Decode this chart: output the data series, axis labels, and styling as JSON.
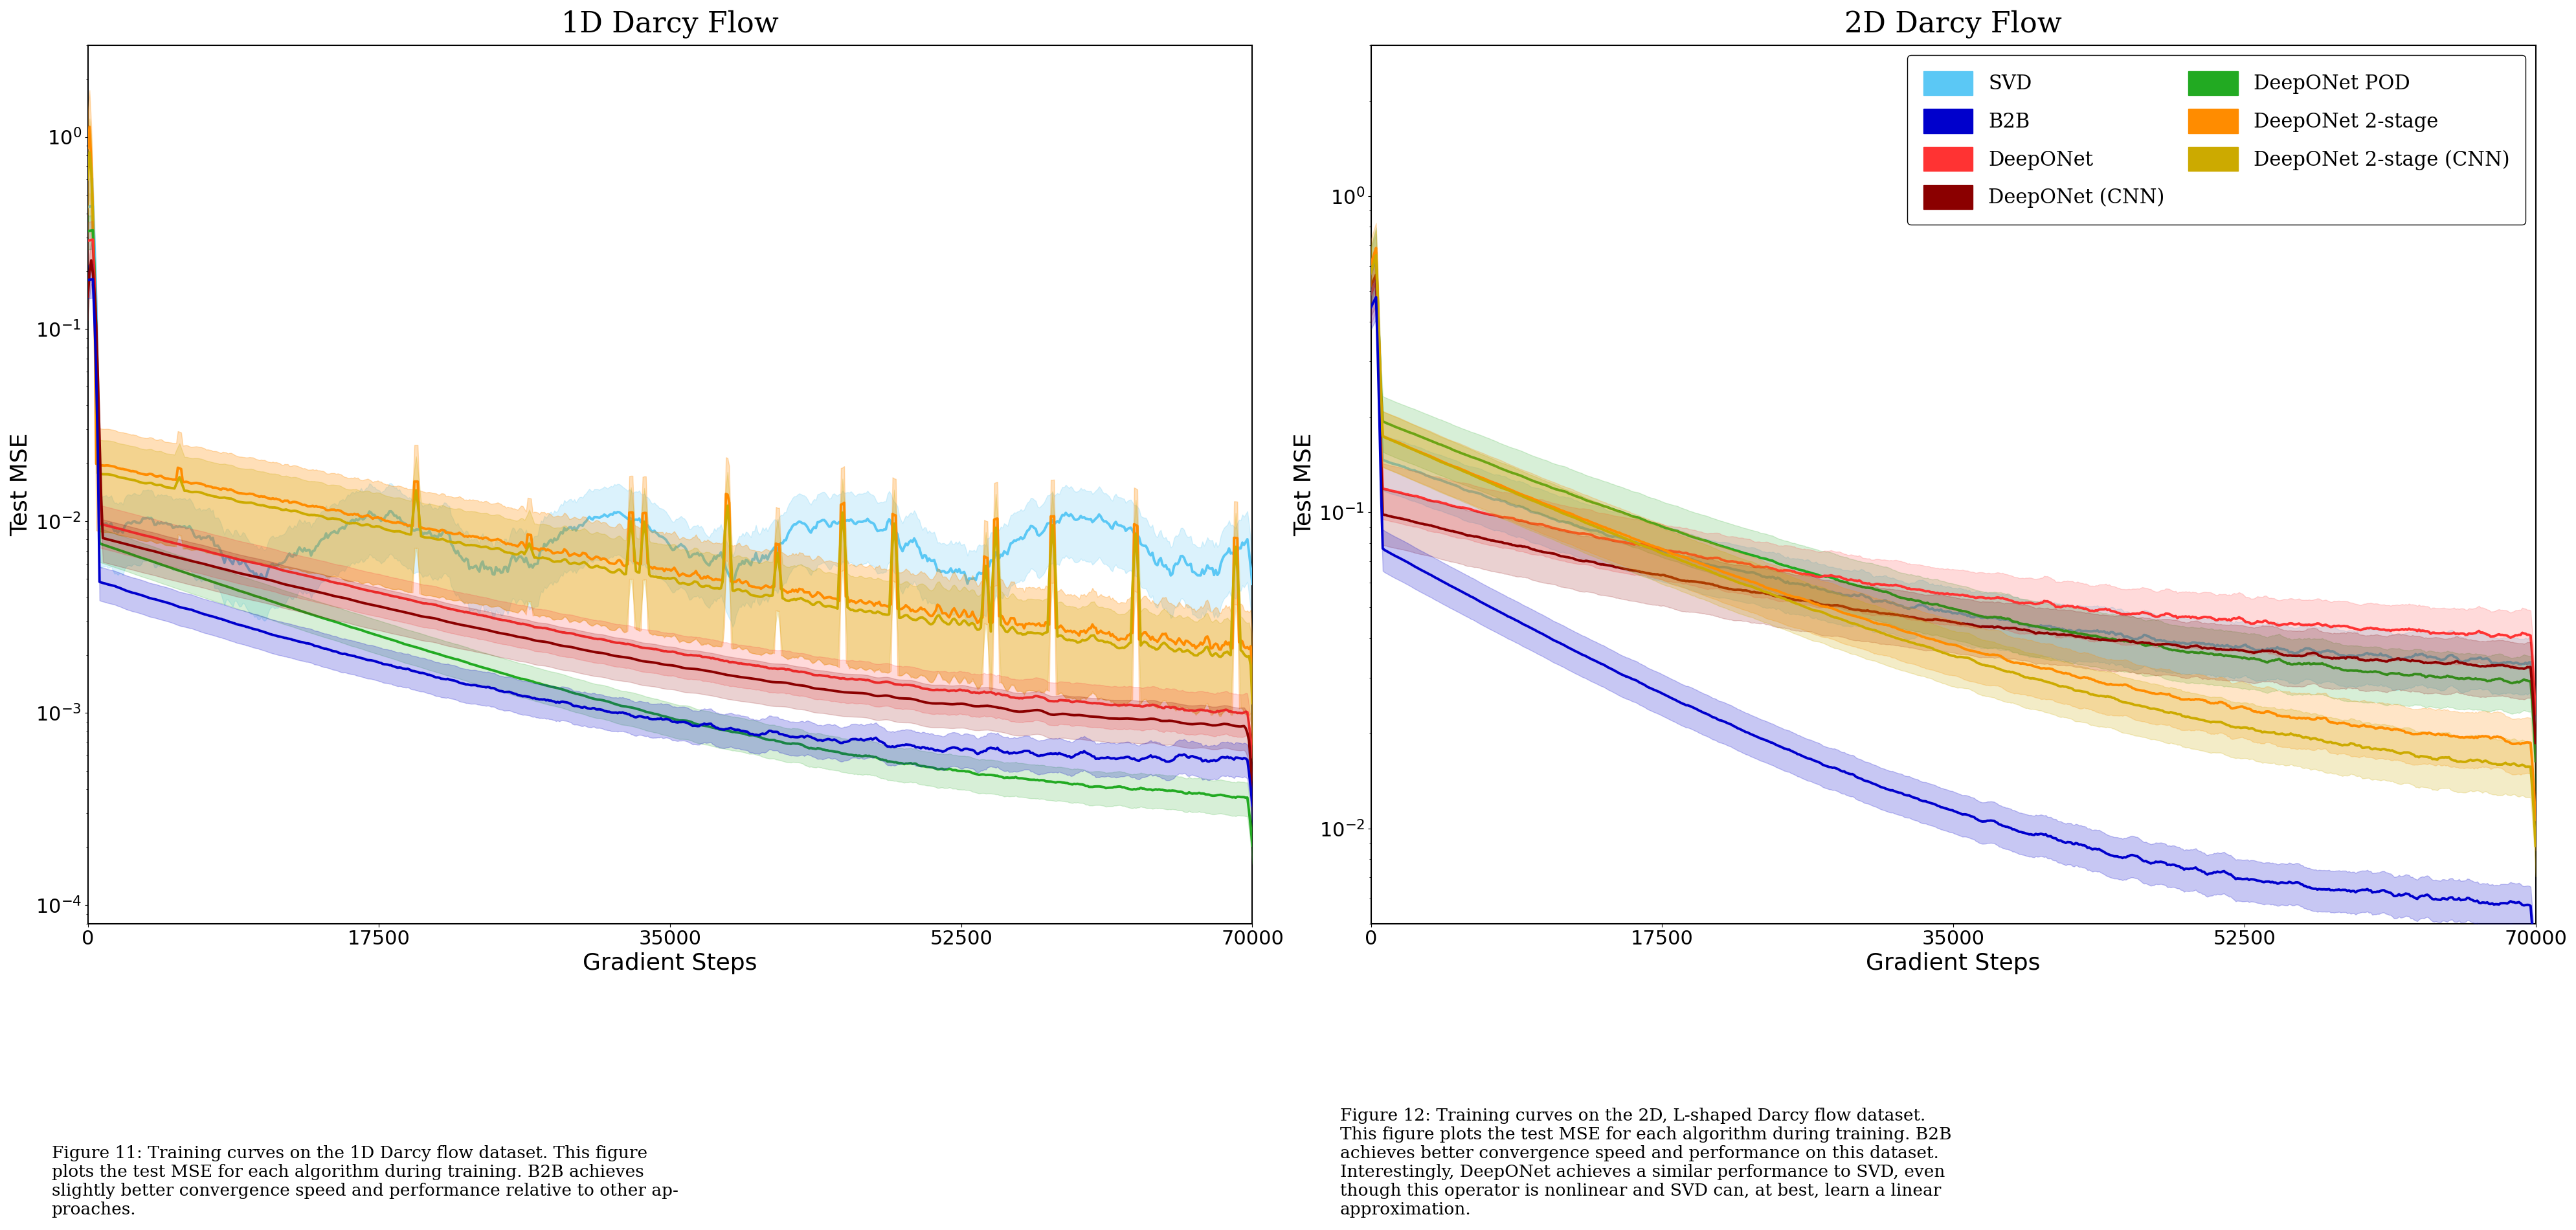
{
  "plot1_title": "1D Darcy Flow",
  "plot2_title": "2D Darcy Flow",
  "xlabel": "Gradient Steps",
  "ylabel": "Test MSE",
  "xticks": [
    0,
    17500,
    35000,
    52500,
    70000
  ],
  "xticklabels": [
    "0",
    "17500",
    "35000",
    "52500",
    "70000"
  ],
  "n_steps": 700,
  "x_max": 70000,
  "colors": {
    "SVD": "#5BC8F5",
    "B2B": "#0000CC",
    "DeepONet": "#FF3333",
    "DeepONet_CNN": "#8B0000",
    "DeepONet_POD": "#22AA22",
    "DeepONet_2stage": "#FF8C00",
    "DeepONet_2stage_CNN": "#CCAA00"
  },
  "legend_labels": [
    "SVD",
    "B2B",
    "DeepONet",
    "DeepONet (CNN)",
    "DeepONet POD",
    "DeepONet 2-stage",
    "DeepONet 2-stage (CNN)"
  ],
  "fig_caption1": "Figure 11: Training curves on the 1D Darcy flow dataset. This figure\nplots the test MSE for each algorithm during training. B2B achieves\nslightly better convergence speed and performance relative to other ap-\nproaches.",
  "fig_caption2": "Figure 12: Training curves on the 2D, L-shaped Darcy flow dataset.\nThis figure plots the test MSE for each algorithm during training. B2B\nachieves better convergence speed and performance on this dataset.\nInterestingly, DeepONet achieves a similar performance to SVD, even\nthough this operator is nonlinear and SVD can, at best, learn a linear\napproximation.",
  "background_color": "#ffffff",
  "ylim1": [
    8e-05,
    3.0
  ],
  "ylim2": [
    0.005,
    3.0
  ]
}
